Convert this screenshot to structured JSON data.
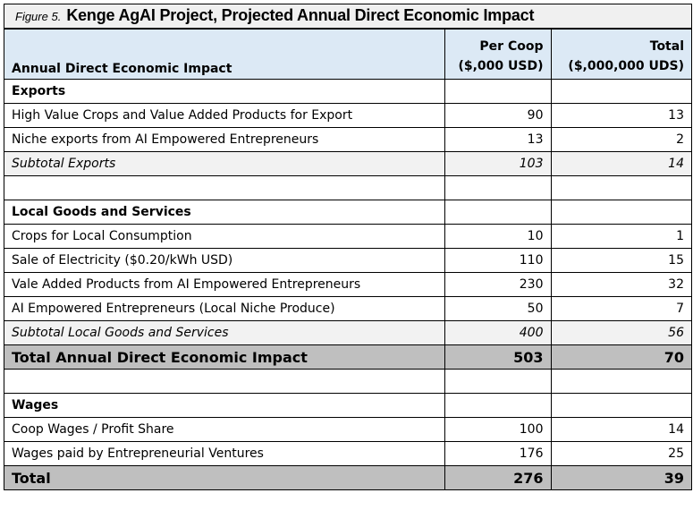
{
  "title": {
    "figure_label": "Figure 5.",
    "text": "Kenge AgAI Project, Projected Annual Direct Economic Impact"
  },
  "header": {
    "col1": "Annual Direct Economic Impact",
    "col2_line1": "Per Coop",
    "col2_line2": "($,000 USD)",
    "col3_line1": "Total",
    "col3_line2": "($,000,000 UDS)"
  },
  "rows": [
    {
      "type": "section",
      "label": "Exports",
      "per_coop": "",
      "total": ""
    },
    {
      "type": "item",
      "label": "High Value Crops and Value Added Products for Export",
      "per_coop": "90",
      "total": "13"
    },
    {
      "type": "item",
      "label": "Niche exports from AI Empowered Entrepreneurs",
      "per_coop": "13",
      "total": "2"
    },
    {
      "type": "subtotal",
      "label": "Subtotal Exports",
      "per_coop": "103",
      "total": "14"
    },
    {
      "type": "blank",
      "label": "",
      "per_coop": "",
      "total": ""
    },
    {
      "type": "section",
      "label": "Local Goods and Services",
      "per_coop": "",
      "total": ""
    },
    {
      "type": "item",
      "label": "Crops for Local Consumption",
      "per_coop": "10",
      "total": "1"
    },
    {
      "type": "item",
      "label": "Sale of Electricity ($0.20/kWh USD)",
      "per_coop": "110",
      "total": "15"
    },
    {
      "type": "item",
      "label": "Vale Added Products from AI Empowered Entrepreneurs",
      "per_coop": "230",
      "total": "32"
    },
    {
      "type": "item",
      "label": "AI Empowered Entrepreneurs (Local Niche Produce)",
      "per_coop": "50",
      "total": "7"
    },
    {
      "type": "subtotal",
      "label": "Subtotal Local Goods and Services",
      "per_coop": "400",
      "total": "56"
    },
    {
      "type": "total",
      "label": "Total Annual Direct Economic Impact",
      "per_coop": "503",
      "total": "70"
    },
    {
      "type": "blank",
      "label": "",
      "per_coop": "",
      "total": ""
    },
    {
      "type": "section",
      "label": "Wages",
      "per_coop": "",
      "total": ""
    },
    {
      "type": "item",
      "label": "Coop Wages / Profit Share",
      "per_coop": "100",
      "total": "14"
    },
    {
      "type": "item",
      "label": "Wages paid by Entrepreneurial Ventures",
      "per_coop": "176",
      "total": "25"
    },
    {
      "type": "total",
      "label": "Total",
      "per_coop": "276",
      "total": "39"
    }
  ]
}
